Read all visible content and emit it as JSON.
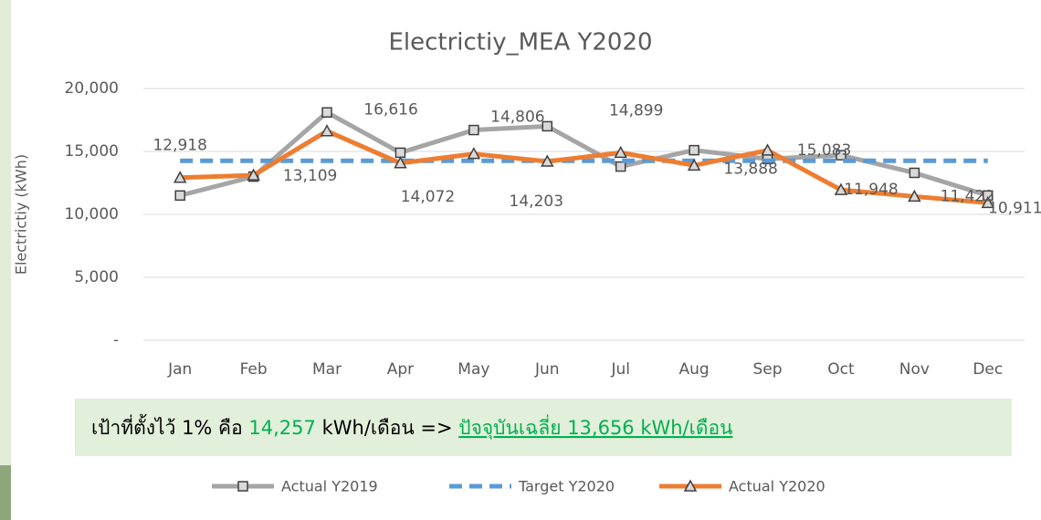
{
  "chart_data": {
    "type": "line",
    "title": "Electrictiy_MEA Y2020",
    "y_label": "Electrictiy (kWh)",
    "categories": [
      "Jan",
      "Feb",
      "Mar",
      "Apr",
      "May",
      "Jun",
      "Jul",
      "Aug",
      "Sep",
      "Oct",
      "Nov",
      "Dec"
    ],
    "series": [
      {
        "name": "Actual Y2019",
        "color": "#a5a5a5",
        "marker": "square",
        "dash": false,
        "values": [
          11500,
          13000,
          18100,
          14900,
          16700,
          17000,
          13800,
          15100,
          14400,
          14700,
          13300,
          11500
        ]
      },
      {
        "name": "Target Y2020",
        "color": "#5b9bd5",
        "marker": "none",
        "dash": true,
        "values": [
          14257,
          14257,
          14257,
          14257,
          14257,
          14257,
          14257,
          14257,
          14257,
          14257,
          14257,
          14257
        ]
      },
      {
        "name": "Actual Y2020",
        "color": "#ed7d31",
        "marker": "triangle",
        "dash": false,
        "values": [
          12918,
          13109,
          16616,
          14072,
          14806,
          14203,
          14899,
          13888,
          15083,
          11948,
          11422,
          10911
        ],
        "value_labels": [
          "12,918",
          "13,109",
          "16,616",
          "14,072",
          "14,806",
          "14,203",
          "14,899",
          "13,888",
          "15,083",
          "11,948",
          "11,422",
          "10,911"
        ]
      }
    ],
    "ylim": [
      0,
      20000
    ],
    "yticks": [
      {
        "value": 0,
        "label": "-"
      },
      {
        "value": 5000,
        "label": "5,000"
      },
      {
        "value": 10000,
        "label": "10,000"
      },
      {
        "value": 15000,
        "label": "15,000"
      },
      {
        "value": 20000,
        "label": "20,000"
      }
    ],
    "grid": true,
    "legend": "bottom",
    "note": {
      "prefix": "เป้าที่ตั้งไว้ 1% คือ",
      "target": "14,257",
      "unit": "kWh/เดือน  =>",
      "current": "ปัจจุบันเฉลี่ย 13,656 kWh/เดือน"
    }
  }
}
